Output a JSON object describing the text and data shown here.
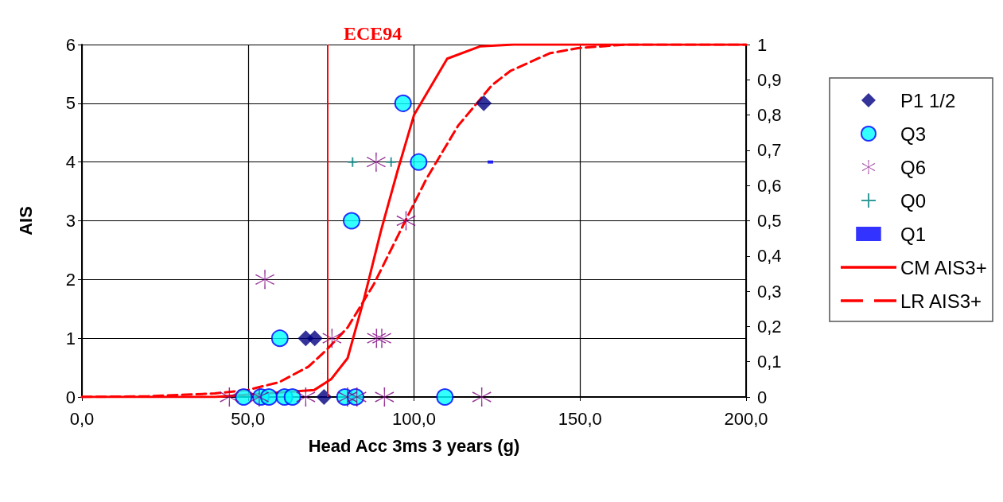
{
  "chart_data": {
    "type": "scatter",
    "xlabel": "Head Acc 3ms 3 years (g)",
    "ylabel": "AIS",
    "xlim": [
      0,
      200
    ],
    "xticks": [
      {
        "value": 0,
        "label": "0,0"
      },
      {
        "value": 50,
        "label": "50,0"
      },
      {
        "value": 100,
        "label": "100,0"
      },
      {
        "value": 150,
        "label": "150,0"
      },
      {
        "value": 200,
        "label": "200,0"
      }
    ],
    "ylim": [
      0,
      6
    ],
    "yticks": [
      0,
      1,
      2,
      3,
      4,
      5,
      6
    ],
    "y2lim": [
      0,
      1
    ],
    "y2ticks": [
      0,
      {
        "value": 0.1,
        "label": "0,1"
      },
      {
        "value": 0.2,
        "label": "0,2"
      },
      {
        "value": 0.3,
        "label": "0,3"
      },
      {
        "value": 0.4,
        "label": "0,4"
      },
      {
        "value": 0.5,
        "label": "0,5"
      },
      {
        "value": 0.6,
        "label": "0,6"
      },
      {
        "value": 0.7,
        "label": "0,7"
      },
      {
        "value": 0.8,
        "label": "0,8"
      },
      {
        "value": 0.9,
        "label": "0,9"
      },
      1
    ],
    "grid": true,
    "legend": "right",
    "ref_lines": [
      {
        "axis": "x",
        "value": 74,
        "label": "ECE94",
        "color": "#ff0000"
      }
    ],
    "series": [
      {
        "name": "P1 1/2",
        "color": "#000080",
        "marker": "diamond",
        "x": [
          67.4,
          70.1,
          72.9,
          121
        ],
        "values": [
          1,
          1,
          0,
          5
        ]
      },
      {
        "name": "Q3",
        "color": "#00ffff",
        "marker": "circle",
        "x": [
          59.6,
          48.7,
          53.9,
          56.3,
          61,
          63.4,
          79.2,
          82.4,
          109.3,
          96.7,
          101.4,
          81.2
        ],
        "values": [
          1,
          0,
          0,
          0,
          0,
          0,
          0,
          0,
          0,
          5,
          4,
          3
        ]
      },
      {
        "name": "Q6",
        "color": "#800080",
        "marker": "cross",
        "x": [
          75.3,
          88.7,
          90.3,
          44.4,
          53.4,
          67.4,
          80,
          82.8,
          91.1,
          120.4,
          88.6,
          97.6,
          55.1
        ],
        "values": [
          1,
          1,
          1,
          0,
          0,
          0,
          0,
          0,
          0,
          0,
          4,
          3,
          2
        ]
      },
      {
        "name": "Q0",
        "color": "#008080",
        "x": [
          81.5,
          93.1
        ],
        "values": [
          4,
          4
        ]
      },
      {
        "name": "Q1",
        "color": "#0000ff",
        "marker": "square",
        "x": [
          123
        ],
        "values": [
          4
        ]
      },
      {
        "name": "CM AIS3+",
        "type": "line",
        "axis": "y2",
        "color": "#ff0000",
        "marker": "none",
        "line_style": "solid",
        "x": [
          0,
          40,
          70,
          75,
          80,
          85,
          90,
          95,
          100,
          110,
          120,
          130,
          200
        ],
        "values": [
          0,
          0,
          0.02,
          0.05,
          0.11,
          0.28,
          0.47,
          0.64,
          0.8,
          0.96,
          0.995,
          1,
          1
        ]
      },
      {
        "name": "LR AIS3+",
        "type": "line",
        "axis": "y2",
        "color": "#ff0000",
        "marker": "none",
        "line_style": "dashed",
        "x": [
          0,
          20,
          40,
          50,
          59.4,
          68.2,
          73.6,
          80,
          87.9,
          97.4,
          103.8,
          113.3,
          123.5,
          129,
          140.8,
          149.4,
          164,
          200
        ],
        "values": [
          0,
          0.002,
          0.01,
          0.02,
          0.042,
          0.086,
          0.133,
          0.197,
          0.32,
          0.5,
          0.62,
          0.77,
          0.885,
          0.925,
          0.975,
          0.99,
          1,
          1
        ]
      }
    ]
  }
}
